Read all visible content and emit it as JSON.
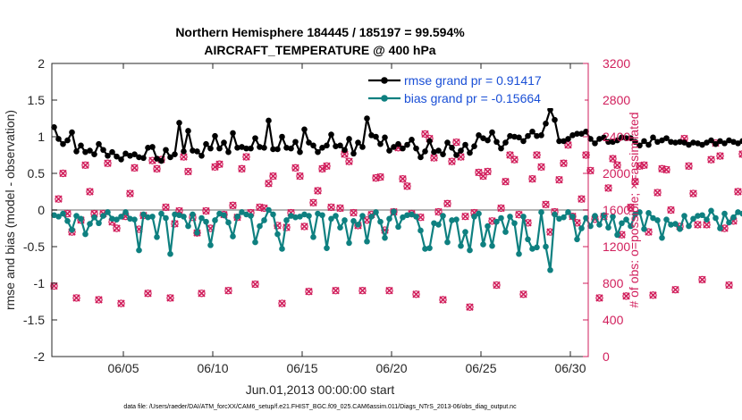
{
  "chart_data": {
    "type": "line",
    "title": "Northern Hemisphere 184445 / 185197 = 99.594%",
    "subtitle": "AIRCRAFT_TEMPERATURE @ 400 hPa",
    "xlabel": "Jun.01,2013 00:00:00 start",
    "ylabel": "rmse and bias (model - observation)",
    "ylabel_right": "# of obs: o=possible; ×=assimilated",
    "footnote": "data file: /Users/raeder/DAI/ATM_forcXX/CAM6_setup/f.e21.FHIST_BGC.f09_025.CAM6assim.011/Diags_NTrS_2013-06/obs_diag_output.nc",
    "xlim": [
      1,
      31
    ],
    "ylim": [
      -2,
      2
    ],
    "ylim_right": [
      0,
      3200
    ],
    "x_ticks": [
      5,
      10,
      15,
      20,
      25,
      30
    ],
    "x_tick_labels": [
      "06/05",
      "06/10",
      "06/15",
      "06/20",
      "06/25",
      "06/30"
    ],
    "y_ticks": [
      -2,
      -1.5,
      -1,
      -0.5,
      0,
      0.5,
      1,
      1.5,
      2
    ],
    "y_tick_labels": [
      "-2",
      "-1.5",
      "-1",
      "-0.5",
      "0",
      "0.5",
      "1",
      "1.5",
      "2"
    ],
    "y_right_ticks": [
      0,
      400,
      800,
      1200,
      1600,
      2000,
      2400,
      2800,
      3200
    ],
    "y_right_tick_labels": [
      "0",
      "400",
      "800",
      "1200",
      "1600",
      "2000",
      "2400",
      "2800",
      "3200"
    ],
    "legend": {
      "placement": "top-right",
      "entries": [
        "rmse grand pr = 0.91417",
        "bias grand pr = -0.15664"
      ]
    },
    "x_start": 1.125,
    "x_step": 0.25,
    "series": [
      {
        "name": "rmse grand pr = 0.91417",
        "color": "#000000",
        "axis": "left",
        "values": [
          1.13,
          0.97,
          0.9,
          0.95,
          1.06,
          0.8,
          0.88,
          0.79,
          0.81,
          0.76,
          0.9,
          0.82,
          0.74,
          0.79,
          0.73,
          0.69,
          0.77,
          0.74,
          0.76,
          0.72,
          0.71,
          0.85,
          0.86,
          0.7,
          0.67,
          0.82,
          0.72,
          0.76,
          1.19,
          0.8,
          1.08,
          0.81,
          0.8,
          0.74,
          0.9,
          0.84,
          1.01,
          0.84,
          0.92,
          0.79,
          1.05,
          0.85,
          0.86,
          0.84,
          0.84,
          0.98,
          0.86,
          0.85,
          1.22,
          0.83,
          0.83,
          1.0,
          0.85,
          0.84,
          0.93,
          0.79,
          1.1,
          0.92,
          0.88,
          0.79,
          0.85,
          0.88,
          1.03,
          0.87,
          0.88,
          0.82,
          0.97,
          0.77,
          0.92,
          0.86,
          1.25,
          1.02,
          1.0,
          0.9,
          0.99,
          0.81,
          0.86,
          0.9,
          0.84,
          0.89,
          0.96,
          0.84,
          0.72,
          0.8,
          0.94,
          0.79,
          0.81,
          0.76,
          0.92,
          0.85,
          0.75,
          0.81,
          0.89,
          0.78,
          0.87,
          1.02,
          0.98,
          0.95,
          1.06,
          0.93,
          0.84,
          0.92,
          1.01,
          1.0,
          0.99,
          0.94,
          1.01,
          1.07,
          1.01,
          1.02,
          1.18,
          1.37,
          1.23,
          0.94,
          0.94,
          0.97,
          1.02,
          1.04,
          1.04,
          1.07,
          0.97,
          0.91,
          0.97,
          0.99,
          0.93,
          0.93,
          0.95,
          0.99,
          0.98,
          0.98,
          0.93,
          0.88,
          0.94,
          0.89,
          0.99,
          0.93,
          0.95,
          0.98,
          0.93,
          0.92,
          0.93,
          0.92,
          0.89,
          0.92,
          0.91,
          0.89,
          0.92,
          0.95,
          0.9,
          0.94,
          0.91,
          0.95,
          0.93,
          0.91,
          0.94,
          0.89,
          0.9,
          0.91,
          0.95,
          0.9,
          0.92,
          0.84,
          1.1,
          0.88,
          0.85,
          0.85,
          0.82
        ]
      },
      {
        "name": "bias grand pr = -0.15664",
        "color": "#0e8080",
        "axis": "left",
        "values": [
          -0.07,
          -0.09,
          -0.05,
          -0.15,
          -0.27,
          -0.08,
          -0.12,
          -0.33,
          -0.19,
          -0.1,
          -0.18,
          -0.08,
          -0.03,
          -0.12,
          -0.13,
          -0.09,
          -0.03,
          -0.12,
          -0.13,
          -0.55,
          -0.06,
          -0.1,
          -0.09,
          -0.37,
          -0.05,
          -0.11,
          -0.6,
          -0.06,
          -0.07,
          -0.09,
          -0.22,
          -0.06,
          -0.31,
          -0.11,
          -0.16,
          -0.48,
          -0.14,
          -0.05,
          -0.07,
          -0.17,
          -0.36,
          -0.09,
          -0.03,
          -0.06,
          -0.08,
          -0.44,
          -0.22,
          -0.14,
          0.0,
          -0.06,
          -0.33,
          -0.53,
          -0.14,
          -0.08,
          -0.1,
          -0.09,
          -0.06,
          -0.08,
          -0.37,
          -0.05,
          -0.07,
          -0.52,
          -0.12,
          -0.08,
          -0.24,
          -0.14,
          -0.45,
          -0.15,
          -0.2,
          -0.08,
          -0.43,
          -0.09,
          -0.03,
          -0.16,
          -0.38,
          -0.12,
          -0.02,
          -0.23,
          -0.1,
          -0.07,
          -0.06,
          -0.09,
          -0.28,
          -0.53,
          -0.52,
          -0.18,
          -0.2,
          -0.08,
          -0.44,
          -0.14,
          -0.13,
          -0.49,
          -0.3,
          -0.55,
          -0.09,
          -0.05,
          -0.47,
          -0.22,
          -0.49,
          -0.16,
          -0.11,
          -0.3,
          -0.09,
          -0.18,
          -0.6,
          -0.09,
          -0.4,
          -0.53,
          -0.51,
          -0.03,
          -0.5,
          -0.82,
          -0.06,
          -0.12,
          -0.1,
          -0.03,
          -0.09,
          -0.4,
          -0.25,
          -0.11,
          -0.22,
          -0.08,
          -0.2,
          -0.07,
          -0.24,
          -0.09,
          -0.34,
          -0.18,
          -0.13,
          -0.22,
          -0.06,
          -0.03,
          -0.26,
          -0.04,
          -0.11,
          -0.14,
          -0.38,
          -0.13,
          -0.2,
          -0.19,
          -0.26,
          -0.08,
          -0.22,
          -0.12,
          -0.08,
          -0.07,
          -0.13,
          -0.01,
          -0.11,
          -0.25,
          -0.05,
          -0.17,
          -0.1,
          -0.03,
          -0.05,
          -0.16,
          -0.35,
          -0.02,
          -0.1,
          -0.09,
          -0.06,
          -0.58,
          0.08,
          -0.05,
          0.05,
          -0.12,
          -0.08
        ]
      }
    ],
    "obs_counts": {
      "axis": "right",
      "possible_color": "#d11f5c",
      "assimilated_color": "#d11f5c",
      "x_start": 1.125,
      "x_step": 0.25,
      "values": [
        770,
        1720,
        2000,
        1560,
        1360,
        640,
        1490,
        2090,
        1800,
        1560,
        620,
        1560,
        2110,
        1470,
        1400,
        580,
        1530,
        1780,
        2060,
        1390,
        1540,
        690,
        2140,
        2050,
        2150,
        1630,
        640,
        1450,
        1590,
        2180,
        2020,
        1520,
        1350,
        690,
        1590,
        1400,
        2070,
        2100,
        1550,
        720,
        1650,
        1520,
        2050,
        2180,
        1570,
        790,
        1630,
        1620,
        1890,
        1970,
        1430,
        580,
        1410,
        1570,
        2060,
        1970,
        1420,
        710,
        1680,
        1810,
        2050,
        2080,
        1630,
        720,
        1620,
        2210,
        2130,
        1570,
        1430,
        720,
        1490,
        1550,
        1950,
        1960,
        1380,
        720,
        1580,
        2280,
        1940,
        1860,
        1560,
        680,
        1520,
        2430,
        2380,
        2170,
        1580,
        620,
        1670,
        2130,
        2340,
        2180,
        1530,
        540,
        1570,
        2010,
        1970,
        2020,
        1480,
        780,
        1620,
        1910,
        2200,
        2150,
        1550,
        680,
        1460,
        1940,
        2200,
        2070,
        1660,
        1360,
        1580,
        1930,
        2110,
        2310,
        1530,
        1460,
        1720,
        2200,
        2030,
        1500,
        640,
        1530,
        1840,
        2160,
        2090,
        1330,
        660,
        1630,
        1910,
        2080,
        2090,
        1360,
        670,
        1790,
        2050,
        2040,
        1600,
        730,
        1420,
        2380,
        2080,
        1780,
        1440,
        840,
        1440,
        2150,
        2330,
        2190,
        1400,
        780,
        1480,
        1800,
        2210,
        2380,
        1650,
        810,
        1540,
        1920,
        2050,
        2080,
        1620,
        1350,
        0,
        2000,
        2070,
        2050,
        1620
      ]
    }
  }
}
